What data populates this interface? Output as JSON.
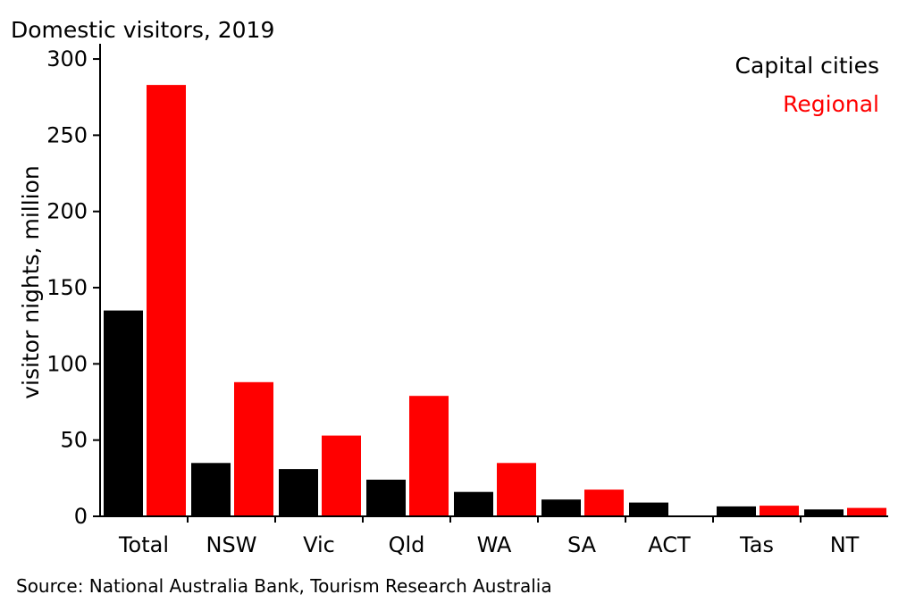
{
  "colors": {
    "capital": "#000000",
    "regional": "#ff0000",
    "axis": "#000000"
  },
  "chart_data": {
    "type": "bar",
    "title": "Domestic visitors, 2019",
    "ylabel": "visitor nights, million",
    "xlabel": "",
    "ylim": [
      0,
      310
    ],
    "yticks": [
      0,
      50,
      100,
      150,
      200,
      250,
      300
    ],
    "categories": [
      "Total",
      "NSW",
      "Vic",
      "Qld",
      "WA",
      "SA",
      "ACT",
      "Tas",
      "NT"
    ],
    "series": [
      {
        "name": "Capital cities",
        "values": [
          135,
          35,
          31,
          24,
          16,
          11,
          9,
          6.5,
          4.5
        ]
      },
      {
        "name": "Regional",
        "values": [
          283,
          88,
          53,
          79,
          35,
          17.5,
          0,
          7,
          5.5
        ]
      }
    ],
    "legend_position": "top-right",
    "grid": false,
    "source": "Source: National Australia Bank, Tourism Research Australia"
  }
}
